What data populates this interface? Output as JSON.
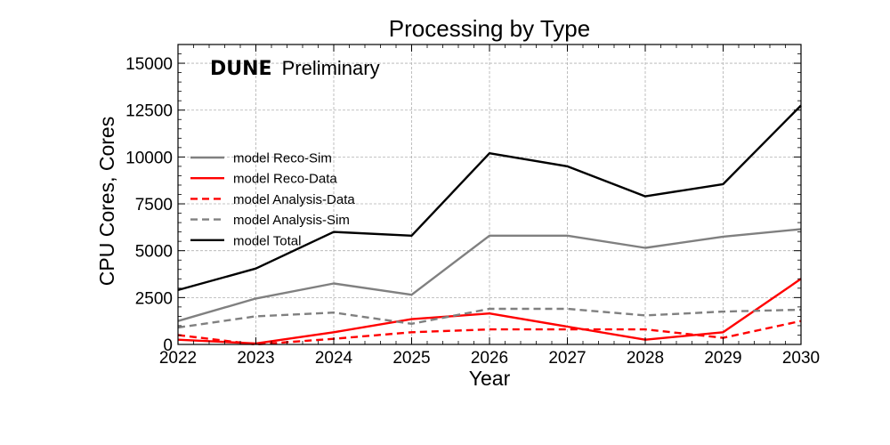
{
  "chart_data": {
    "type": "line",
    "title": "Processing by Type",
    "xlabel": "Year",
    "ylabel": "CPU Cores, Cores",
    "xlim": [
      2022,
      2030
    ],
    "ylim": [
      0,
      16000
    ],
    "xticks": [
      2022,
      2023,
      2024,
      2025,
      2026,
      2027,
      2028,
      2029,
      2030
    ],
    "yticks": [
      0,
      2500,
      5000,
      7500,
      10000,
      12500,
      15000
    ],
    "grid": true,
    "legend_position": "center-left",
    "x": [
      2022,
      2023,
      2024,
      2025,
      2026,
      2027,
      2028,
      2029,
      2030
    ],
    "series": [
      {
        "name": "model Reco-Sim",
        "color": "#808080",
        "dash": "solid",
        "values": [
          1250,
          2450,
          3250,
          2650,
          5800,
          5800,
          5150,
          5750,
          6150
        ]
      },
      {
        "name": "model Reco-Data",
        "color": "#ff0000",
        "dash": "solid",
        "values": [
          250,
          50,
          650,
          1350,
          1650,
          950,
          250,
          650,
          3500
        ]
      },
      {
        "name": "model Analysis-Data",
        "color": "#ff0000",
        "dash": "dashed",
        "values": [
          500,
          0,
          300,
          650,
          800,
          800,
          800,
          350,
          1250
        ]
      },
      {
        "name": "model Analysis-Sim",
        "color": "#808080",
        "dash": "dashed",
        "values": [
          900,
          1500,
          1700,
          1100,
          1900,
          1900,
          1550,
          1750,
          1850
        ]
      },
      {
        "name": "model Total",
        "color": "#000000",
        "dash": "solid",
        "values": [
          2900,
          4050,
          6000,
          5800,
          10200,
          9500,
          7900,
          8550,
          12750
        ]
      }
    ],
    "annotation": {
      "bold": "DUNE",
      "normal": "Preliminary"
    }
  }
}
